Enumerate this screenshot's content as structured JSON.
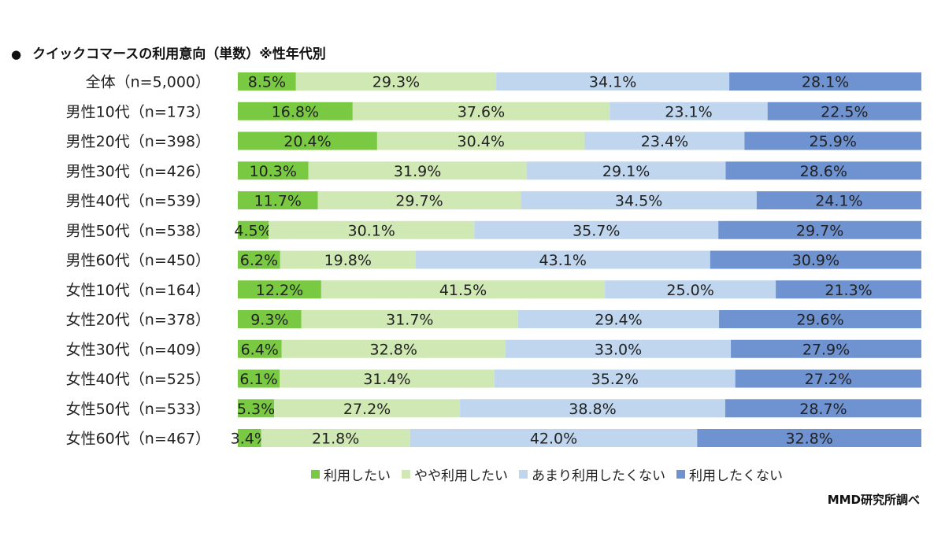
{
  "title": "クイックコマースの利用意向（単数）※性年代別",
  "source": "MMD研究所調べ",
  "chart_data": {
    "type": "bar",
    "orientation": "horizontal",
    "stacked": true,
    "percent": true,
    "categories": [
      "全体（n=5,000）",
      "男性10代（n=173）",
      "男性20代（n=398）",
      "男性30代（n=426）",
      "男性40代（n=539）",
      "男性50代（n=538）",
      "男性60代（n=450）",
      "女性10代（n=164）",
      "女性20代（n=378）",
      "女性30代（n=409）",
      "女性40代（n=525）",
      "女性50代（n=533）",
      "女性60代（n=467）"
    ],
    "series": [
      {
        "name": "利用したい",
        "color": "#7ac943",
        "values": [
          8.5,
          16.8,
          20.4,
          10.3,
          11.7,
          4.5,
          6.2,
          12.2,
          9.3,
          6.4,
          6.1,
          5.3,
          3.4
        ],
        "labels": [
          "8.5%",
          "16.8%",
          "20.4%",
          "10.3%",
          "11.7%",
          "4.5%",
          "6.2%",
          "12.2%",
          "9.3%",
          "6.4%",
          "6.1%",
          "5.3%",
          "3.4%"
        ]
      },
      {
        "name": "やや利用したい",
        "color": "#cfe8b4",
        "values": [
          29.3,
          37.6,
          30.4,
          31.9,
          29.7,
          30.1,
          19.8,
          41.5,
          31.7,
          32.8,
          31.4,
          27.2,
          21.8
        ],
        "labels": [
          "29.3%",
          "37.6%",
          "30.4%",
          "31.9%",
          "29.7%",
          "30.1%",
          "19.8%",
          "41.5%",
          "31.7%",
          "32.8%",
          "31.4%",
          "27.2%",
          "21.8%"
        ]
      },
      {
        "name": "あまり利用したくない",
        "color": "#bfd6ee",
        "values": [
          34.1,
          23.1,
          23.4,
          29.1,
          34.5,
          35.7,
          43.1,
          25.0,
          29.4,
          33.0,
          35.2,
          38.8,
          42.0
        ],
        "labels": [
          "34.1%",
          "23.1%",
          "23.4%",
          "29.1%",
          "34.5%",
          "35.7%",
          "43.1%",
          "25.0%",
          "29.4%",
          "33.0%",
          "35.2%",
          "38.8%",
          "42.0%"
        ]
      },
      {
        "name": "利用したくない",
        "color": "#6f92d0",
        "values": [
          28.1,
          22.5,
          25.9,
          28.6,
          24.1,
          29.7,
          30.9,
          21.3,
          29.6,
          27.9,
          27.2,
          28.7,
          32.8
        ],
        "labels": [
          "28.1%",
          "22.5%",
          "25.9%",
          "28.6%",
          "24.1%",
          "29.7%",
          "30.9%",
          "21.3%",
          "29.6%",
          "27.9%",
          "27.2%",
          "28.7%",
          "32.8%"
        ]
      }
    ],
    "xlim": [
      0,
      100
    ],
    "grid": false,
    "legend_position": "bottom"
  }
}
